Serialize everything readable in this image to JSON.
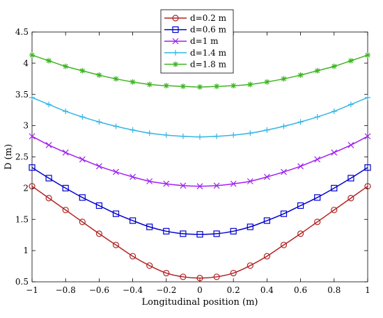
{
  "chart_data": {
    "type": "line",
    "title": "",
    "xlabel": "Longitudinal position (m)",
    "ylabel": "D (m)",
    "xlim": [
      -1,
      1
    ],
    "ylim": [
      0.5,
      4.5
    ],
    "xticks": [
      -1,
      -0.8,
      -0.6,
      -0.4,
      -0.2,
      0,
      0.2,
      0.4,
      0.6,
      0.8,
      1
    ],
    "xtick_labels": [
      "−1",
      "−0.8",
      "−0.6",
      "−0.4",
      "−0.2",
      "0",
      "0.2",
      "0.4",
      "0.6",
      "0.8",
      "1"
    ],
    "yticks": [
      0.5,
      1,
      1.5,
      2,
      2.5,
      3,
      3.5,
      4,
      4.5
    ],
    "ytick_labels": [
      "0.5",
      "1",
      "1.5",
      "2",
      "2.5",
      "3",
      "3.5",
      "4",
      "4.5"
    ],
    "grid": false,
    "legend_position": "top-center",
    "x": [
      -1,
      -0.9,
      -0.8,
      -0.7,
      -0.6,
      -0.5,
      -0.4,
      -0.3,
      -0.2,
      -0.1,
      0,
      0.1,
      0.2,
      0.3,
      0.4,
      0.5,
      0.6,
      0.7,
      0.8,
      0.9,
      1
    ],
    "series": [
      {
        "name": "d=0.2 m",
        "color": "#b22222",
        "marker": "circle",
        "values": [
          2.03,
          1.84,
          1.65,
          1.46,
          1.27,
          1.09,
          0.91,
          0.76,
          0.64,
          0.58,
          0.56,
          0.58,
          0.64,
          0.76,
          0.91,
          1.09,
          1.27,
          1.46,
          1.65,
          1.84,
          2.03
        ]
      },
      {
        "name": "d=0.6 m",
        "color": "#0000cc",
        "marker": "square",
        "values": [
          2.33,
          2.16,
          2.0,
          1.85,
          1.72,
          1.59,
          1.48,
          1.38,
          1.31,
          1.27,
          1.26,
          1.27,
          1.31,
          1.38,
          1.48,
          1.59,
          1.72,
          1.85,
          2.0,
          2.16,
          2.33
        ]
      },
      {
        "name": "d=1 m",
        "color": "#a020f0",
        "marker": "x",
        "values": [
          2.83,
          2.69,
          2.57,
          2.46,
          2.35,
          2.26,
          2.18,
          2.11,
          2.07,
          2.04,
          2.03,
          2.04,
          2.07,
          2.11,
          2.18,
          2.26,
          2.35,
          2.46,
          2.57,
          2.69,
          2.83
        ]
      },
      {
        "name": "d=1.4 m",
        "color": "#33b5e5",
        "marker": "plus",
        "values": [
          3.45,
          3.34,
          3.23,
          3.14,
          3.06,
          2.99,
          2.93,
          2.88,
          2.85,
          2.83,
          2.82,
          2.83,
          2.85,
          2.88,
          2.93,
          2.99,
          3.06,
          3.14,
          3.23,
          3.34,
          3.45
        ]
      },
      {
        "name": "d=1.8 m",
        "color": "#3cb521",
        "marker": "star",
        "values": [
          4.13,
          4.04,
          3.95,
          3.88,
          3.81,
          3.75,
          3.7,
          3.66,
          3.64,
          3.63,
          3.62,
          3.63,
          3.64,
          3.66,
          3.7,
          3.75,
          3.81,
          3.88,
          3.95,
          4.04,
          4.13
        ]
      }
    ]
  }
}
